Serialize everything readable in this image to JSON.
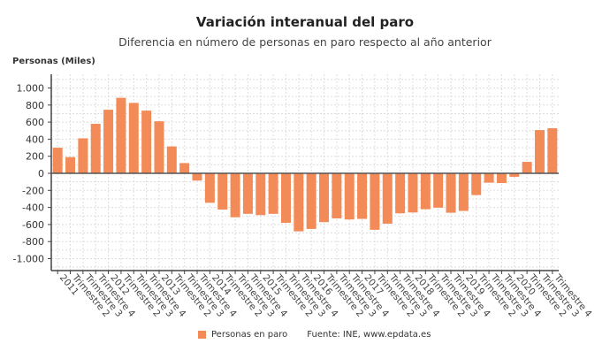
{
  "chart_data": {
    "type": "bar",
    "title": "Variación interanual del paro",
    "subtitle": "Diferencia en número de personas en paro respecto al año anterior",
    "ylabel": "Personas (Miles)",
    "ylim": [
      -1100,
      1100
    ],
    "yticks": [
      1000,
      800,
      600,
      400,
      200,
      0,
      -200,
      -400,
      -600,
      -800,
      -1000
    ],
    "ytick_labels": [
      "1.000",
      "800",
      "600",
      "400",
      "200",
      "0",
      "-200",
      "-400",
      "-600",
      "-800",
      "-1.000"
    ],
    "grid": true,
    "color": "#f28b57",
    "categories": [
      "2011",
      "Trimestre 2",
      "Trimestre 3",
      "Trimestre 4",
      "2012",
      "Trimestre 2",
      "Trimestre 3",
      "Trimestre 4",
      "2013",
      "Trimestre 2",
      "Trimestre 3",
      "Trimestre 4",
      "2014",
      "Trimestre 2",
      "Trimestre 3",
      "Trimestre 4",
      "2015",
      "Trimestre 2",
      "Trimestre 3",
      "Trimestre 4",
      "2016",
      "Trimestre 2",
      "Trimestre 3",
      "Trimestre 4",
      "2017",
      "Trimestre 2",
      "Trimestre 3",
      "Trimestre 4",
      "2018",
      "Trimestre 2",
      "Trimestre 3",
      "Trimestre 4",
      "2019",
      "Trimestre 2",
      "Trimestre 3",
      "Trimestre 4",
      "2020",
      "Trimestre 2",
      "Trimestre 3",
      "Trimestre 4"
    ],
    "series": [
      {
        "name": "Personas en paro",
        "values": [
          300,
          190,
          410,
          580,
          745,
          885,
          825,
          735,
          610,
          315,
          120,
          -85,
          -345,
          -425,
          -515,
          -475,
          -490,
          -475,
          -580,
          -680,
          -652,
          -572,
          -528,
          -541,
          -534,
          -662,
          -590,
          -469,
          -459,
          -421,
          -403,
          -462,
          -441,
          -255,
          -110,
          -114,
          -41,
          134,
          507,
          528
        ]
      }
    ],
    "legend_position": "bottom",
    "source": "Fuente: INE, www.epdata.es"
  }
}
